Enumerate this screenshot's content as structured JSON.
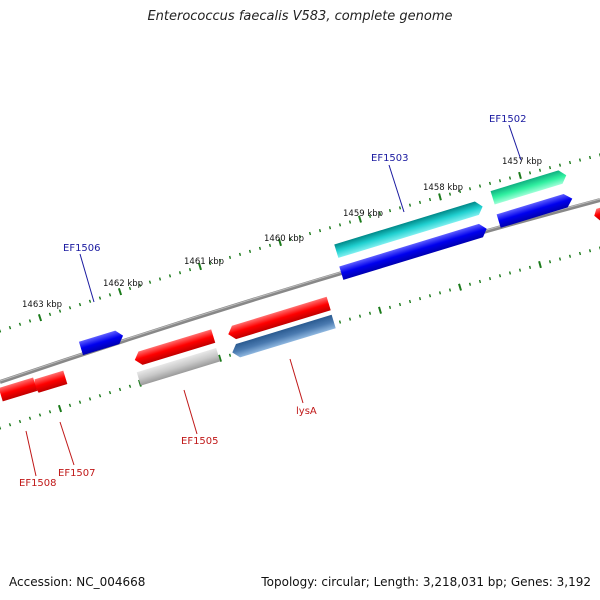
{
  "title": "Enterococcus faecalis V583, complete genome",
  "footer": {
    "accession": "Accession: NC_004668",
    "topology": "Topology: circular; Length: 3,218,031 bp; Genes: 3,192"
  },
  "tick_labels": [
    "1457 kbp",
    "1458 kbp",
    "1459 kbp",
    "1460 kbp",
    "1461 kbp",
    "1462 kbp",
    "1463 kbp"
  ],
  "colors": {
    "backbone": "#888888",
    "ticks": "#1a7a1a",
    "forward_label": "#1a1aa0",
    "reverse_label": "#c01818",
    "red": "#ff1010",
    "blue": "#1010ee",
    "cyan": "#20cccc",
    "spring_green": "#30f0a0",
    "gray": "#c8c8c8",
    "steel_blue": "#4a7ab0"
  },
  "gene_labels": {
    "forward": [
      "EF1502",
      "EF1503",
      "EF1506"
    ],
    "reverse": [
      "EF1505",
      "lysA",
      "EF1507",
      "EF1508"
    ]
  }
}
